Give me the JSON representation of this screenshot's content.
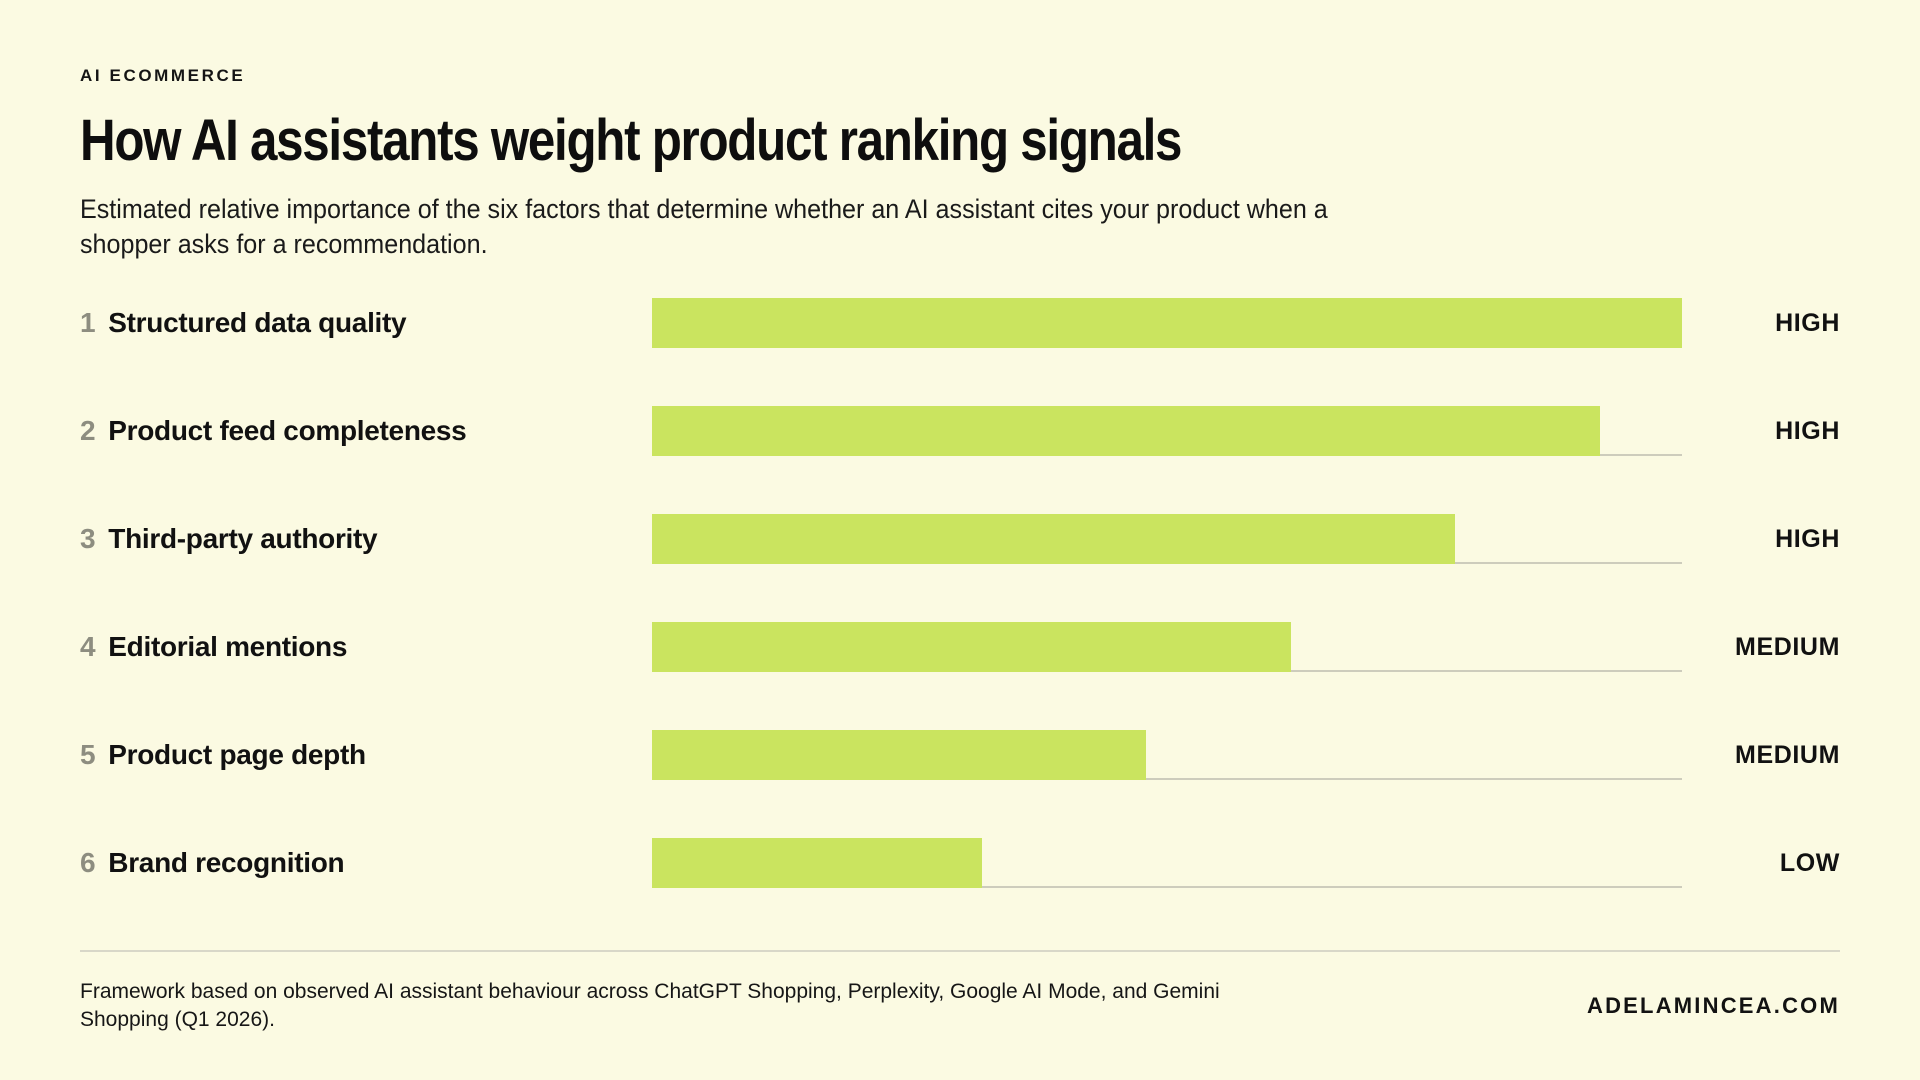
{
  "page": {
    "eyebrow": "AI ECOMMERCE",
    "title": "How AI assistants weight product ranking signals",
    "subtitle": "Estimated relative importance of the six factors that determine whether an AI assistant cites your product when a shopper asks for a recommendation.",
    "footer_note": "Framework based on observed AI assistant behaviour across ChatGPT Shopping, Perplexity, Google AI Mode, and Gemini Shopping (Q1 2026).",
    "footer_site": "ADELAMINCEA.COM"
  },
  "colors": {
    "background": "#FBFAE2",
    "bar_fill": "#CAE45F",
    "text": "#111111",
    "rank_number": "#8D8D80",
    "track_line": "#CDCCBC",
    "divider": "#D8D7C8"
  },
  "chart_data": {
    "type": "bar",
    "orientation": "horizontal",
    "title": "How AI assistants weight product ranking signals",
    "categories": [
      "Structured data quality",
      "Product feed completeness",
      "Third-party authority",
      "Editorial mentions",
      "Product page depth",
      "Brand recognition"
    ],
    "ranks": [
      "1",
      "2",
      "3",
      "4",
      "5",
      "6"
    ],
    "values": [
      100,
      92,
      78,
      62,
      48,
      32
    ],
    "ratings": [
      "HIGH",
      "HIGH",
      "HIGH",
      "MEDIUM",
      "MEDIUM",
      "LOW"
    ],
    "xlim": [
      0,
      100
    ],
    "grid": false,
    "legend": false,
    "value_unit": "relative importance, % of max"
  }
}
